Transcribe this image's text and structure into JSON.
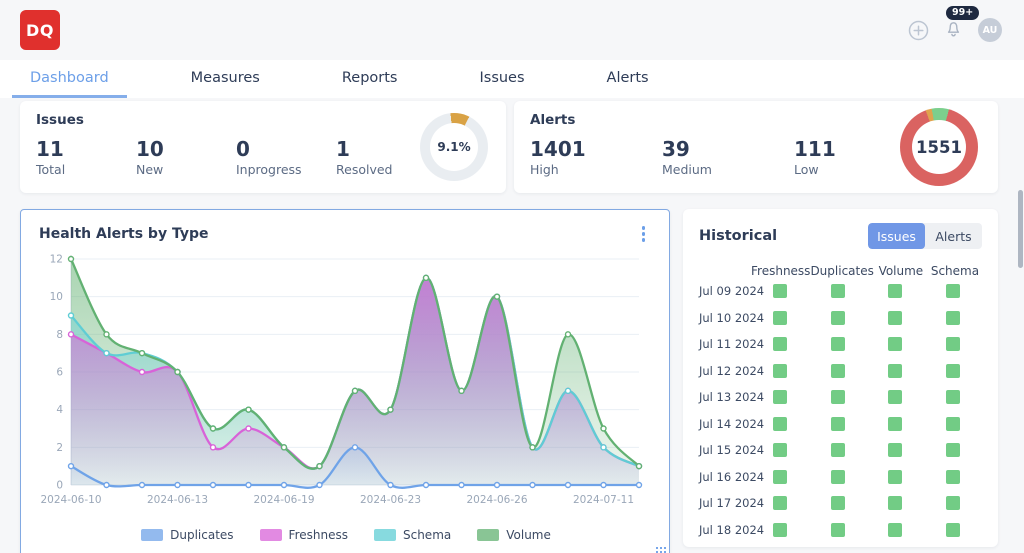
{
  "header": {
    "logo_text": "DQ",
    "notifications_badge": "99+",
    "avatar_initials": "AU"
  },
  "nav": {
    "tabs": [
      {
        "label": "Dashboard",
        "active": true
      },
      {
        "label": "Measures",
        "active": false
      },
      {
        "label": "Reports",
        "active": false
      },
      {
        "label": "Issues",
        "active": false
      },
      {
        "label": "Alerts",
        "active": false
      }
    ]
  },
  "issues": {
    "title": "Issues",
    "stats": [
      {
        "value": "11",
        "label": "Total"
      },
      {
        "value": "10",
        "label": "New"
      },
      {
        "value": "0",
        "label": "Inprogress"
      },
      {
        "value": "1",
        "label": "Resolved"
      }
    ],
    "donut_center": "9.1%"
  },
  "alerts": {
    "title": "Alerts",
    "stats": [
      {
        "value": "1401",
        "label": "High"
      },
      {
        "value": "39",
        "label": "Medium"
      },
      {
        "value": "111",
        "label": "Low"
      }
    ],
    "donut_center": "1551"
  },
  "health": {
    "title": "Health Alerts by Type"
  },
  "historical": {
    "title": "Historical",
    "toggle": [
      {
        "label": "Issues",
        "active": true
      },
      {
        "label": "Alerts",
        "active": false
      }
    ],
    "columns": [
      "Freshness",
      "Duplicates",
      "Volume",
      "Schema"
    ],
    "rows": [
      {
        "date": "Jul 09 2024",
        "statuses": [
          "ok",
          "ok",
          "ok",
          "ok"
        ]
      },
      {
        "date": "Jul 10 2024",
        "statuses": [
          "ok",
          "ok",
          "ok",
          "ok"
        ]
      },
      {
        "date": "Jul 11 2024",
        "statuses": [
          "ok",
          "ok",
          "ok",
          "ok"
        ]
      },
      {
        "date": "Jul 12 2024",
        "statuses": [
          "ok",
          "ok",
          "ok",
          "ok"
        ]
      },
      {
        "date": "Jul 13 2024",
        "statuses": [
          "ok",
          "ok",
          "ok",
          "ok"
        ]
      },
      {
        "date": "Jul 14 2024",
        "statuses": [
          "ok",
          "ok",
          "ok",
          "ok"
        ]
      },
      {
        "date": "Jul 15 2024",
        "statuses": [
          "ok",
          "ok",
          "ok",
          "ok"
        ]
      },
      {
        "date": "Jul 16 2024",
        "statuses": [
          "ok",
          "ok",
          "ok",
          "ok"
        ]
      },
      {
        "date": "Jul 17 2024",
        "statuses": [
          "ok",
          "ok",
          "ok",
          "ok"
        ]
      },
      {
        "date": "Jul 18 2024",
        "statuses": [
          "ok",
          "ok",
          "ok",
          "ok"
        ]
      }
    ],
    "status_color_ok": "#72cc85"
  },
  "chart_data": [
    {
      "id": "health-area",
      "type": "area",
      "title": "Health Alerts by Type",
      "x_count": 17,
      "x_ticks": [
        {
          "index": 0,
          "label": "2024-06-10"
        },
        {
          "index": 3,
          "label": "2024-06-13"
        },
        {
          "index": 6,
          "label": "2024-06-19"
        },
        {
          "index": 9,
          "label": "2024-06-23"
        },
        {
          "index": 12,
          "label": "2024-06-26"
        },
        {
          "index": 15,
          "label": "2024-07-11"
        }
      ],
      "ylim": [
        0,
        12
      ],
      "yticks": [
        0,
        2,
        4,
        6,
        8,
        10,
        12
      ],
      "grid": true,
      "legend_position": "bottom",
      "series": [
        {
          "name": "Duplicates",
          "color": "#6fa3e8",
          "fill_top": 0.75,
          "fill_bottom": 0.05,
          "values": [
            1,
            0,
            0,
            0,
            0,
            0,
            0,
            0,
            2,
            0,
            0,
            0,
            0,
            0,
            0,
            0,
            0
          ]
        },
        {
          "name": "Freshness",
          "color": "#d863d8",
          "fill_top": 0.8,
          "fill_bottom": 0.06,
          "values": [
            8,
            7,
            6,
            6,
            2,
            3,
            2,
            1,
            5,
            4,
            11,
            5,
            10,
            2,
            5,
            2,
            1
          ]
        },
        {
          "name": "Schema",
          "color": "#5fcdd4",
          "fill_top": 0.55,
          "fill_bottom": 0.08,
          "values": [
            9,
            7,
            7,
            6,
            3,
            4,
            2,
            1,
            5,
            4,
            11,
            5,
            10,
            2,
            5,
            2,
            1
          ]
        },
        {
          "name": "Volume",
          "color": "#62b172",
          "fill_top": 0.55,
          "fill_bottom": 0.1,
          "values": [
            12,
            8,
            7,
            6,
            3,
            4,
            2,
            1,
            5,
            4,
            11,
            5,
            10,
            2,
            8,
            3,
            1
          ]
        }
      ]
    },
    {
      "id": "issues-donut",
      "type": "pie",
      "center_label": "9.1%",
      "start_deg": -6,
      "segments": [
        {
          "label": "Resolved",
          "value": 9.1,
          "color": "#d9a245"
        },
        {
          "label": "Remaining",
          "value": 90.9,
          "color": "#e9edf1"
        }
      ]
    },
    {
      "id": "alerts-donut",
      "type": "pie",
      "center_label": "1551",
      "start_deg": -20,
      "segments": [
        {
          "label": "Medium",
          "value": 39,
          "color": "#e0a34e"
        },
        {
          "label": "Low",
          "value": 111,
          "color": "#7ccf8d"
        },
        {
          "label": "High",
          "value": 1401,
          "color": "#da6361"
        }
      ]
    }
  ]
}
